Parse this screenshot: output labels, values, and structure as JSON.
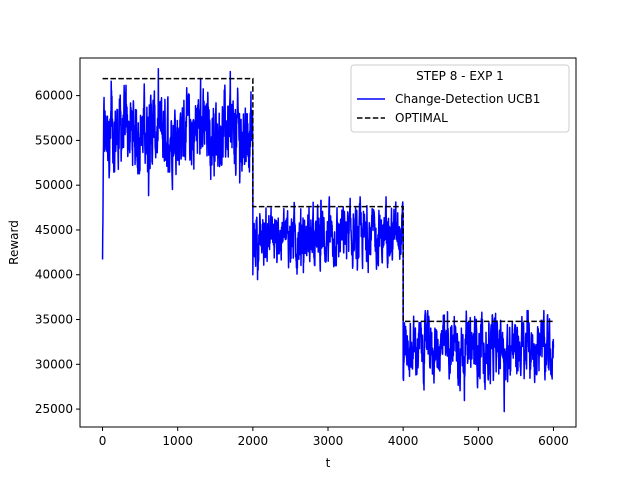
{
  "chart_data": {
    "type": "line",
    "title": "",
    "xlabel": "t",
    "ylabel": "Reward",
    "xlim": [
      -300,
      6300
    ],
    "ylim": [
      23000,
      64200
    ],
    "xticks": [
      0,
      1000,
      2000,
      3000,
      4000,
      5000,
      6000
    ],
    "yticks": [
      25000,
      30000,
      35000,
      40000,
      45000,
      50000,
      55000,
      60000
    ],
    "grid": false,
    "legend": {
      "title": "STEP 8 - EXP 1",
      "placement": "top-right"
    },
    "series": [
      {
        "name": "Change-Detection UCB1",
        "style": "solid",
        "color": "#0000ff",
        "segments": [
          {
            "x_start": 0,
            "x_end": 2000,
            "mean": 56000,
            "min": 48700,
            "max": 63000,
            "start_value": 41700
          },
          {
            "x_start": 2000,
            "x_end": 4000,
            "mean": 44200,
            "min": 37700,
            "max": 48700,
            "start_value": 40000
          },
          {
            "x_start": 4000,
            "x_end": 6000,
            "mean": 31800,
            "min": 24700,
            "max": 36000,
            "start_value": 28500
          }
        ]
      },
      {
        "name": "OPTIMAL",
        "style": "dashed",
        "color": "#000000",
        "x": [
          0,
          2000,
          2000,
          4000,
          4000,
          6000
        ],
        "y": [
          61900,
          61900,
          47600,
          47600,
          34800,
          34800
        ]
      }
    ]
  }
}
